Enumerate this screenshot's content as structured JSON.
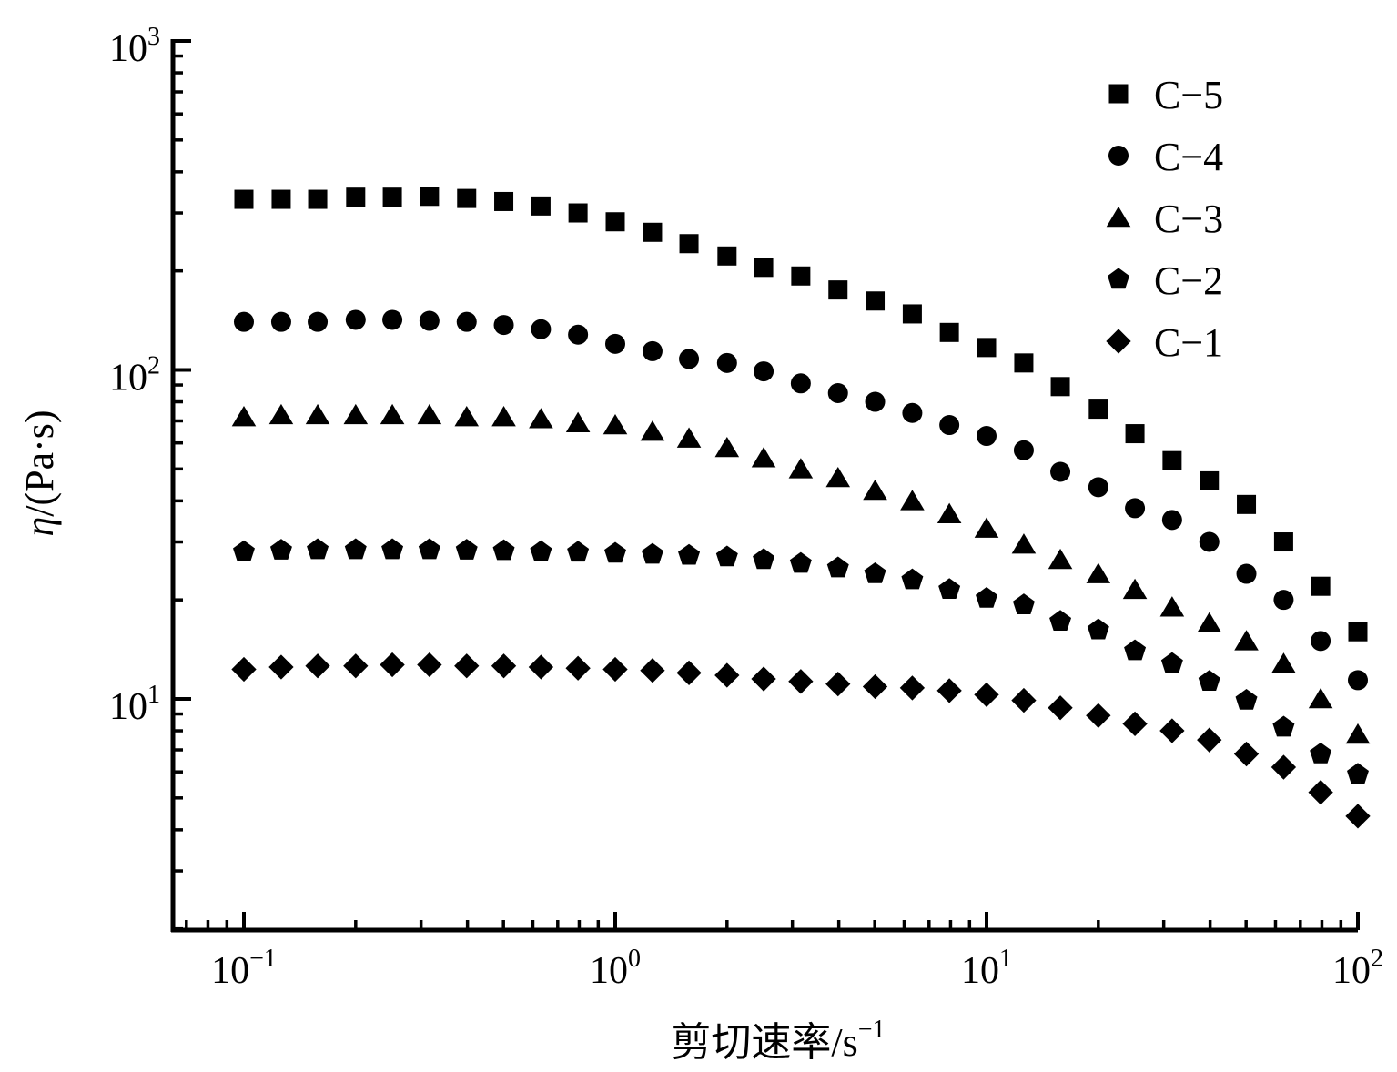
{
  "chart_data": {
    "type": "scatter",
    "title": "",
    "xlabel": {
      "main": "剪切速率/s",
      "sup": "−1"
    },
    "ylabel": {
      "eta": "η",
      "unit": "/(Pa·s)"
    },
    "x_scale": "log",
    "y_scale": "log",
    "xlim": [
      0.07,
      100
    ],
    "ylim": [
      2,
      1000
    ],
    "x_ticks": [
      {
        "value": 0.1,
        "base": "10",
        "exp": "−1"
      },
      {
        "value": 1,
        "base": "10",
        "exp": "0"
      },
      {
        "value": 10,
        "base": "10",
        "exp": "1"
      },
      {
        "value": 100,
        "base": "10",
        "exp": "2"
      }
    ],
    "y_ticks": [
      {
        "value": 10,
        "base": "10",
        "exp": "1"
      },
      {
        "value": 100,
        "base": "10",
        "exp": "2"
      },
      {
        "value": 1000,
        "base": "10",
        "exp": "3"
      }
    ],
    "grid": false,
    "legend_position": "top-right",
    "x": [
      0.1,
      0.126,
      0.158,
      0.2,
      0.251,
      0.316,
      0.398,
      0.501,
      0.631,
      0.794,
      1.0,
      1.26,
      1.58,
      2.0,
      2.51,
      3.16,
      3.98,
      5.01,
      6.31,
      7.94,
      10.0,
      12.6,
      15.8,
      20.0,
      25.1,
      31.6,
      39.8,
      50.1,
      63.1,
      79.4,
      100
    ],
    "series": [
      {
        "name": "C−5",
        "marker": "square",
        "values": [
          330,
          330,
          330,
          335,
          335,
          337,
          332,
          325,
          315,
          300,
          282,
          262,
          242,
          222,
          205,
          193,
          175,
          162,
          148,
          130,
          117,
          105,
          89,
          76,
          64,
          53,
          46,
          39,
          30,
          22,
          16
        ]
      },
      {
        "name": "C−4",
        "marker": "circle",
        "values": [
          140,
          140,
          140,
          142,
          142,
          141,
          140,
          137,
          133,
          128,
          120,
          114,
          108,
          105,
          99,
          91,
          85,
          80,
          74,
          68,
          63,
          57,
          49,
          44,
          38,
          35,
          30,
          24,
          20,
          15,
          11.4
        ]
      },
      {
        "name": "C−3",
        "marker": "triangle",
        "values": [
          72,
          73,
          73,
          73,
          73,
          73,
          72,
          72,
          71,
          69,
          68,
          65,
          62,
          58,
          54,
          50,
          47,
          43,
          40,
          36.5,
          33,
          29.5,
          26.5,
          24,
          21.5,
          19,
          17,
          15,
          12.8,
          10,
          7.8
        ]
      },
      {
        "name": "C−2",
        "marker": "pentagon",
        "values": [
          28,
          28.3,
          28.4,
          28.4,
          28.4,
          28.4,
          28.3,
          28.2,
          28,
          27.9,
          27.7,
          27.5,
          27.3,
          27,
          26.5,
          25.8,
          25,
          24,
          23,
          21.5,
          20.2,
          19.3,
          17.2,
          16.2,
          14,
          12.8,
          11.3,
          9.9,
          8.2,
          6.8,
          5.9
        ]
      },
      {
        "name": "C−1",
        "marker": "diamond",
        "values": [
          12.3,
          12.5,
          12.6,
          12.6,
          12.7,
          12.7,
          12.6,
          12.6,
          12.5,
          12.4,
          12.3,
          12.2,
          12.0,
          11.8,
          11.5,
          11.3,
          11.1,
          10.9,
          10.8,
          10.6,
          10.3,
          9.9,
          9.4,
          8.9,
          8.4,
          8.0,
          7.5,
          6.8,
          6.2,
          5.2,
          4.4
        ]
      }
    ]
  }
}
